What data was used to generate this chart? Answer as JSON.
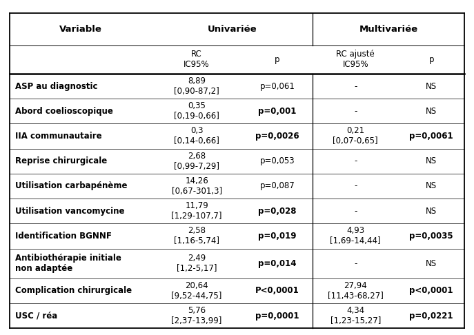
{
  "headers_row1": [
    "Variable",
    "Univariée",
    "Multivariée"
  ],
  "headers_row2_uni": "RC\nIC95%",
  "headers_row2_p1": "p",
  "headers_row2_multi": "RC ajusté\nIC95%",
  "headers_row2_p2": "p",
  "rows": [
    {
      "variable": "ASP au diagnostic",
      "rc_uni": "8,89\n[0,90-87,2]",
      "p_uni": "p=0,061",
      "p_uni_bold": false,
      "rc_multi": "-",
      "p_multi": "NS",
      "p_multi_bold": false
    },
    {
      "variable": "Abord coelioscopique",
      "rc_uni": "0,35\n[0,19-0,66]",
      "p_uni": "p=0,001",
      "p_uni_bold": true,
      "rc_multi": "-",
      "p_multi": "NS",
      "p_multi_bold": false
    },
    {
      "variable": "IIA communautaire",
      "rc_uni": "0,3\n[0,14-0,66]",
      "p_uni": "p=0,0026",
      "p_uni_bold": true,
      "rc_multi": "0,21\n[0,07-0,65]",
      "p_multi": "p=0,0061",
      "p_multi_bold": true
    },
    {
      "variable": "Reprise chirurgicale",
      "rc_uni": "2,68\n[0,99-7,29]",
      "p_uni": "p=0,053",
      "p_uni_bold": false,
      "rc_multi": "-",
      "p_multi": "NS",
      "p_multi_bold": false
    },
    {
      "variable": "Utilisation carbapénème",
      "rc_uni": "14,26\n[0,67-301,3]",
      "p_uni": "p=0,087",
      "p_uni_bold": false,
      "rc_multi": "-",
      "p_multi": "NS",
      "p_multi_bold": false
    },
    {
      "variable": "Utilisation vancomycine",
      "rc_uni": "11,79\n[1,29-107,7]",
      "p_uni": "p=0,028",
      "p_uni_bold": true,
      "rc_multi": "-",
      "p_multi": "NS",
      "p_multi_bold": false
    },
    {
      "variable": "Identification BGNNF",
      "rc_uni": "2,58\n[1,16-5,74]",
      "p_uni": "p=0,019",
      "p_uni_bold": true,
      "rc_multi": "4,93\n[1,69-14,44]",
      "p_multi": "p=0,0035",
      "p_multi_bold": true
    },
    {
      "variable": "Antibiothérapie initiale\nnon adaptée",
      "rc_uni": "2,49\n[1,2-5,17]",
      "p_uni": "p=0,014",
      "p_uni_bold": true,
      "rc_multi": "-",
      "p_multi": "NS",
      "p_multi_bold": false
    },
    {
      "variable": "Complication chirurgicale",
      "rc_uni": "20,64\n[9,52-44,75]",
      "p_uni": "P<0,0001",
      "p_uni_bold": true,
      "rc_multi": "27,94\n[11,43-68,27]",
      "p_multi": "p<0,0001",
      "p_multi_bold": true
    },
    {
      "variable": "USC / réa",
      "rc_uni": "5,76\n[2,37-13,99]",
      "p_uni": "p=0,0001",
      "p_uni_bold": true,
      "rc_multi": "4,34\n[1,23-15,27]",
      "p_multi": "p=0,0221",
      "p_multi_bold": true
    }
  ],
  "bg_color": "#ffffff",
  "text_color": "#000000",
  "font_size": 8.5,
  "header_font_size": 9.5
}
